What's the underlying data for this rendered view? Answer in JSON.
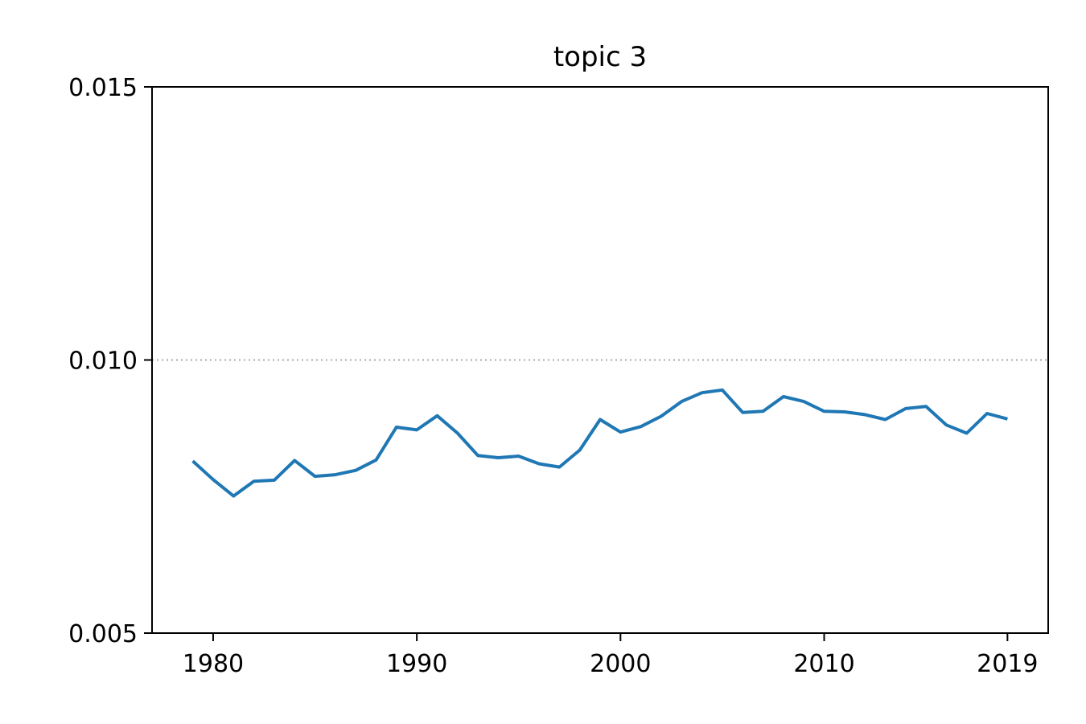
{
  "chart_data": {
    "type": "line",
    "title": "topic 3",
    "xlabel": "",
    "ylabel": "",
    "xlim": [
      1977,
      2021
    ],
    "ylim": [
      0.005,
      0.015
    ],
    "x_ticks": [
      1980,
      1990,
      2000,
      2010,
      2019
    ],
    "x_tick_labels": [
      "1980",
      "1990",
      "2000",
      "2010",
      "2019"
    ],
    "y_ticks": [
      0.005,
      0.01,
      0.015
    ],
    "y_tick_labels": [
      "0.005",
      "0.010",
      "0.015"
    ],
    "reference_line": {
      "y": 0.01,
      "style": "dotted",
      "color": "#aaaaaa"
    },
    "grid": false,
    "series": [
      {
        "color": "#1f77b4",
        "x": [
          1979,
          1980,
          1981,
          1982,
          1983,
          1984,
          1985,
          1986,
          1987,
          1988,
          1989,
          1990,
          1991,
          1992,
          1993,
          1994,
          1995,
          1996,
          1997,
          1998,
          1999,
          2000,
          2001,
          2002,
          2003,
          2004,
          2005,
          2006,
          2007,
          2008,
          2009,
          2010,
          2011,
          2012,
          2013,
          2014,
          2015,
          2016,
          2017,
          2018,
          2019
        ],
        "y": [
          0.00815,
          0.00781,
          0.00751,
          0.00778,
          0.0078,
          0.00816,
          0.00787,
          0.0079,
          0.00798,
          0.00817,
          0.00877,
          0.00872,
          0.00898,
          0.00866,
          0.00825,
          0.00821,
          0.00824,
          0.0081,
          0.00804,
          0.00835,
          0.00891,
          0.00868,
          0.00878,
          0.00897,
          0.00924,
          0.0094,
          0.00945,
          0.00904,
          0.00906,
          0.00933,
          0.00924,
          0.00906,
          0.00905,
          0.009,
          0.00891,
          0.00911,
          0.00915,
          0.00881,
          0.00866,
          0.00902,
          0.00892
        ]
      }
    ]
  }
}
